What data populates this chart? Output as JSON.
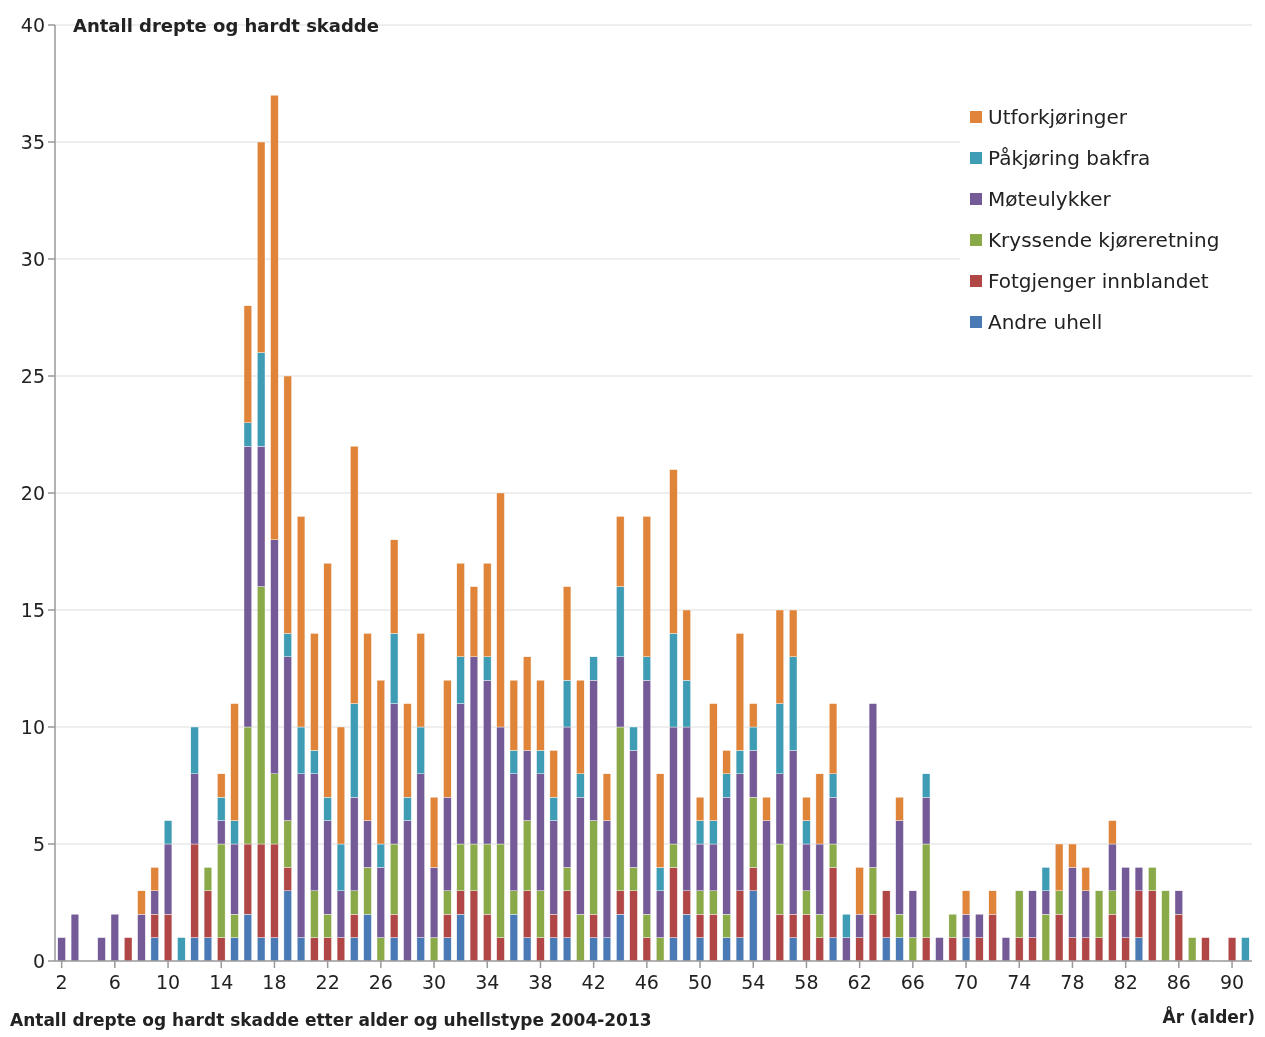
{
  "chart_data": {
    "type": "bar",
    "stacked": true,
    "title": "Antall drepte og hardt skadde etter alder og uhellstype 2004-2013",
    "ylabel": "Antall drepte og hardt skadde",
    "xlabel": "År (alder)",
    "x": [
      2,
      3,
      5,
      6,
      7,
      8,
      9,
      10,
      11,
      12,
      13,
      14,
      15,
      16,
      17,
      18,
      19,
      20,
      21,
      22,
      23,
      24,
      25,
      26,
      27,
      28,
      29,
      30,
      31,
      32,
      33,
      34,
      35,
      36,
      37,
      38,
      39,
      40,
      41,
      42,
      43,
      44,
      45,
      46,
      47,
      48,
      49,
      50,
      51,
      52,
      53,
      54,
      55,
      56,
      57,
      58,
      59,
      60,
      61,
      62,
      63,
      64,
      65,
      66,
      67,
      68,
      69,
      70,
      71,
      72,
      73,
      74,
      75,
      76,
      77,
      78,
      79,
      80,
      81,
      82,
      83,
      84,
      85,
      86,
      87,
      88,
      90,
      91
    ],
    "xlim": [
      1.5,
      91.5
    ],
    "xticks": [
      2,
      6,
      10,
      14,
      18,
      22,
      26,
      30,
      34,
      38,
      42,
      46,
      50,
      54,
      58,
      62,
      66,
      70,
      74,
      78,
      82,
      86,
      90
    ],
    "series": [
      {
        "name": "Andre uhell",
        "color": "#4a7ab5",
        "values": [
          0,
          0,
          0,
          0,
          0,
          0,
          1,
          0,
          0,
          1,
          1,
          0,
          1,
          2,
          1,
          1,
          3,
          1,
          0,
          0,
          0,
          1,
          2,
          0,
          1,
          0,
          1,
          0,
          1,
          2,
          0,
          0,
          0,
          2,
          1,
          0,
          1,
          1,
          0,
          1,
          1,
          2,
          0,
          0,
          0,
          1,
          2,
          1,
          0,
          1,
          1,
          3,
          0,
          0,
          1,
          0,
          0,
          1,
          0,
          0,
          0,
          1,
          1,
          0,
          0,
          0,
          0,
          1,
          0,
          0,
          0,
          0,
          0,
          0,
          0,
          0,
          0,
          0,
          0,
          0,
          1,
          0,
          0,
          0,
          0,
          0,
          0,
          0
        ]
      },
      {
        "name": "Fotgjenger innblandet",
        "color": "#b04646",
        "values": [
          0,
          0,
          0,
          0,
          1,
          0,
          1,
          2,
          0,
          4,
          2,
          1,
          0,
          3,
          4,
          4,
          1,
          0,
          1,
          1,
          1,
          1,
          0,
          0,
          1,
          0,
          0,
          0,
          1,
          1,
          3,
          2,
          1,
          0,
          2,
          1,
          1,
          2,
          0,
          1,
          0,
          1,
          3,
          1,
          0,
          3,
          1,
          1,
          2,
          0,
          2,
          1,
          0,
          2,
          1,
          2,
          1,
          3,
          0,
          1,
          2,
          2,
          0,
          0,
          1,
          0,
          1,
          0,
          1,
          2,
          0,
          1,
          1,
          0,
          2,
          1,
          1,
          1,
          2,
          1,
          2,
          3,
          0,
          2,
          0,
          1,
          1,
          0
        ]
      },
      {
        "name": "Kryssende kjøreretning",
        "color": "#8aaa4a",
        "values": [
          0,
          0,
          0,
          0,
          0,
          0,
          0,
          0,
          0,
          0,
          1,
          4,
          1,
          5,
          11,
          3,
          2,
          0,
          2,
          1,
          0,
          1,
          2,
          1,
          3,
          0,
          0,
          1,
          1,
          2,
          2,
          3,
          4,
          1,
          3,
          2,
          0,
          1,
          2,
          4,
          0,
          7,
          1,
          1,
          1,
          1,
          0,
          1,
          1,
          1,
          0,
          3,
          0,
          3,
          0,
          1,
          1,
          1,
          0,
          0,
          2,
          0,
          1,
          1,
          4,
          0,
          1,
          0,
          0,
          0,
          0,
          2,
          0,
          2,
          1,
          0,
          0,
          2,
          1,
          0,
          0,
          1,
          3,
          0,
          1,
          0,
          0,
          0
        ]
      },
      {
        "name": "Møteulykker",
        "color": "#745a96",
        "values": [
          1,
          2,
          1,
          2,
          0,
          2,
          1,
          3,
          0,
          3,
          0,
          1,
          3,
          12,
          6,
          10,
          7,
          7,
          5,
          4,
          2,
          4,
          2,
          3,
          6,
          6,
          7,
          3,
          4,
          6,
          8,
          7,
          5,
          5,
          3,
          5,
          4,
          6,
          5,
          6,
          5,
          3,
          5,
          10,
          2,
          5,
          7,
          2,
          2,
          5,
          5,
          2,
          6,
          3,
          7,
          2,
          3,
          2,
          1,
          1,
          7,
          0,
          4,
          2,
          2,
          1,
          0,
          1,
          1,
          0,
          1,
          0,
          2,
          1,
          0,
          3,
          2,
          0,
          2,
          3,
          1,
          0,
          0,
          1,
          0,
          0,
          0,
          0
        ]
      },
      {
        "name": "Påkjøring bakfra",
        "color": "#3f9cb5",
        "values": [
          0,
          0,
          0,
          0,
          0,
          0,
          0,
          1,
          1,
          2,
          0,
          1,
          1,
          1,
          4,
          0,
          1,
          2,
          1,
          1,
          2,
          4,
          0,
          1,
          3,
          1,
          2,
          0,
          0,
          2,
          0,
          1,
          0,
          1,
          0,
          1,
          1,
          2,
          1,
          1,
          0,
          3,
          1,
          1,
          1,
          4,
          2,
          1,
          1,
          1,
          1,
          1,
          0,
          3,
          4,
          1,
          0,
          1,
          1,
          0,
          0,
          0,
          0,
          0,
          1,
          0,
          0,
          0,
          0,
          0,
          0,
          0,
          0,
          1,
          0,
          0,
          0,
          0,
          0,
          0,
          0,
          0,
          0,
          0,
          0,
          0,
          0,
          1
        ]
      },
      {
        "name": "Utforkjøringer",
        "color": "#e0843a",
        "values": [
          0,
          0,
          0,
          0,
          0,
          1,
          1,
          0,
          0,
          0,
          0,
          1,
          5,
          5,
          9,
          19,
          11,
          9,
          5,
          10,
          5,
          11,
          8,
          7,
          4,
          4,
          4,
          3,
          5,
          4,
          3,
          4,
          10,
          3,
          4,
          3,
          2,
          4,
          4,
          0,
          2,
          3,
          0,
          6,
          4,
          7,
          3,
          1,
          5,
          1,
          5,
          1,
          1,
          4,
          2,
          1,
          3,
          3,
          0,
          2,
          0,
          0,
          1,
          0,
          0,
          0,
          0,
          1,
          0,
          1,
          0,
          0,
          0,
          0,
          2,
          1,
          1,
          0,
          1,
          0,
          0,
          0,
          0,
          0,
          0,
          0,
          0,
          0
        ]
      }
    ],
    "ylim": [
      0,
      40
    ],
    "yticks": [
      0,
      5,
      10,
      15,
      20,
      25,
      30,
      35,
      40
    ],
    "grid": "y",
    "legend": "top right"
  }
}
